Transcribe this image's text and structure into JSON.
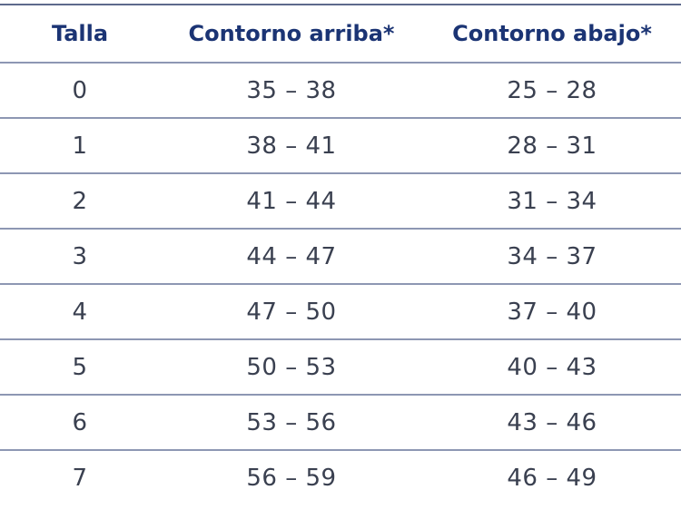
{
  "table": {
    "headers": [
      "Talla",
      "Contorno arriba*",
      "Contorno abajo*"
    ],
    "rows": [
      [
        "0",
        "35 – 38",
        "25 – 28"
      ],
      [
        "1",
        "38 – 41",
        "28 – 31"
      ],
      [
        "2",
        "41 – 44",
        "31 – 34"
      ],
      [
        "3",
        "44 – 47",
        "34 – 37"
      ],
      [
        "4",
        "47 – 50",
        "37 – 40"
      ],
      [
        "5",
        "50 – 53",
        "40 – 43"
      ],
      [
        "6",
        "53 – 56",
        "43 – 46"
      ],
      [
        "7",
        "56 – 59",
        "46 – 49"
      ]
    ]
  },
  "colors": {
    "header_text": "#1b3474",
    "body_text": "#3a4050",
    "rule": "#8d97b3"
  }
}
